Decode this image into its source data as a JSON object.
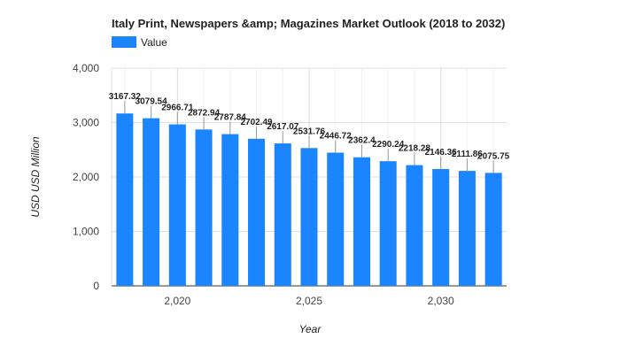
{
  "chart_data": {
    "type": "bar",
    "title": "Italy Print, Newspapers &amp; Magazines Market Outlook (2018 to 2032)",
    "xlabel": "Year",
    "ylabel": "USD USD Million",
    "legend": {
      "label": "Value",
      "position": "top-left"
    },
    "series_color": "#1a85ff",
    "x": [
      2018,
      2019,
      2020,
      2021,
      2022,
      2023,
      2024,
      2025,
      2026,
      2027,
      2028,
      2029,
      2030,
      2031,
      2032
    ],
    "values": [
      3167.32,
      3079.54,
      2966.71,
      2872.94,
      2787.84,
      2702.49,
      2617.07,
      2531.76,
      2446.72,
      2362.4,
      2290.24,
      2218.28,
      2146.36,
      2111.86,
      2075.75
    ],
    "value_labels": [
      "3167.32",
      "3079.54",
      "2966.71",
      "2872.94",
      "2787.84",
      "2702.49",
      "2617.07",
      "2531.76",
      "2446.72",
      "2362.4",
      "2290.24",
      "2218.28",
      "2146.36",
      "2111.86",
      "2075.75"
    ],
    "ylim": [
      0,
      4000
    ],
    "y_ticks": [
      0,
      1000,
      2000,
      3000,
      4000
    ],
    "y_tick_labels": [
      "0",
      "1,000",
      "2,000",
      "3,000",
      "4,000"
    ],
    "x_ticks": [
      2020,
      2025,
      2030
    ],
    "x_tick_labels": [
      "2,020",
      "2,025",
      "2,030"
    ],
    "grid": true
  }
}
